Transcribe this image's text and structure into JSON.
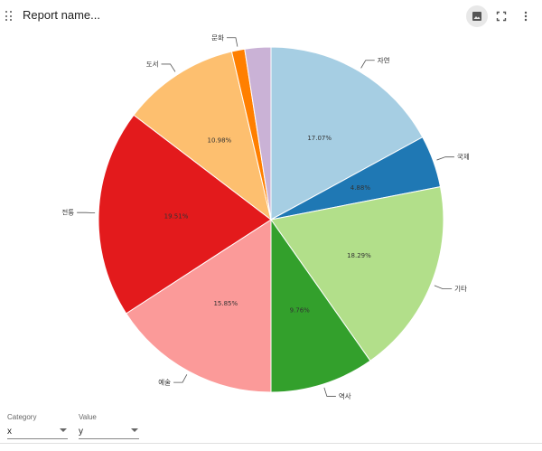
{
  "header": {
    "title": "Report name...",
    "icons": [
      "drag-handle-icon",
      "image-icon",
      "fullscreen-icon",
      "more-vert-icon"
    ]
  },
  "chart_data": {
    "type": "pie",
    "title": "",
    "slices": [
      {
        "label": "자연",
        "value": 17.07,
        "pct_label": "17.07%",
        "color": "#a6cee3"
      },
      {
        "label": "국제",
        "value": 4.88,
        "pct_label": "4.88%",
        "color": "#1f78b4"
      },
      {
        "label": "기타",
        "value": 18.29,
        "pct_label": "18.29%",
        "color": "#b2df8a"
      },
      {
        "label": "역사",
        "value": 9.76,
        "pct_label": "9.76%",
        "color": "#33a02c"
      },
      {
        "label": "예술",
        "value": 15.85,
        "pct_label": "15.85%",
        "color": "#fb9a99"
      },
      {
        "label": "전통",
        "value": 19.51,
        "pct_label": "19.51%",
        "color": "#e31a1c"
      },
      {
        "label": "도서",
        "value": 10.98,
        "pct_label": "10.98%",
        "color": "#fdbf6f"
      },
      {
        "label": "문화",
        "value": 1.22,
        "pct_label": "",
        "color": "#ff7f00"
      },
      {
        "label": "",
        "value": 2.44,
        "pct_label": "",
        "color": "#cab2d6"
      }
    ]
  },
  "controls": {
    "category": {
      "label": "Category",
      "value": "x"
    },
    "value": {
      "label": "Value",
      "value": "y"
    }
  }
}
